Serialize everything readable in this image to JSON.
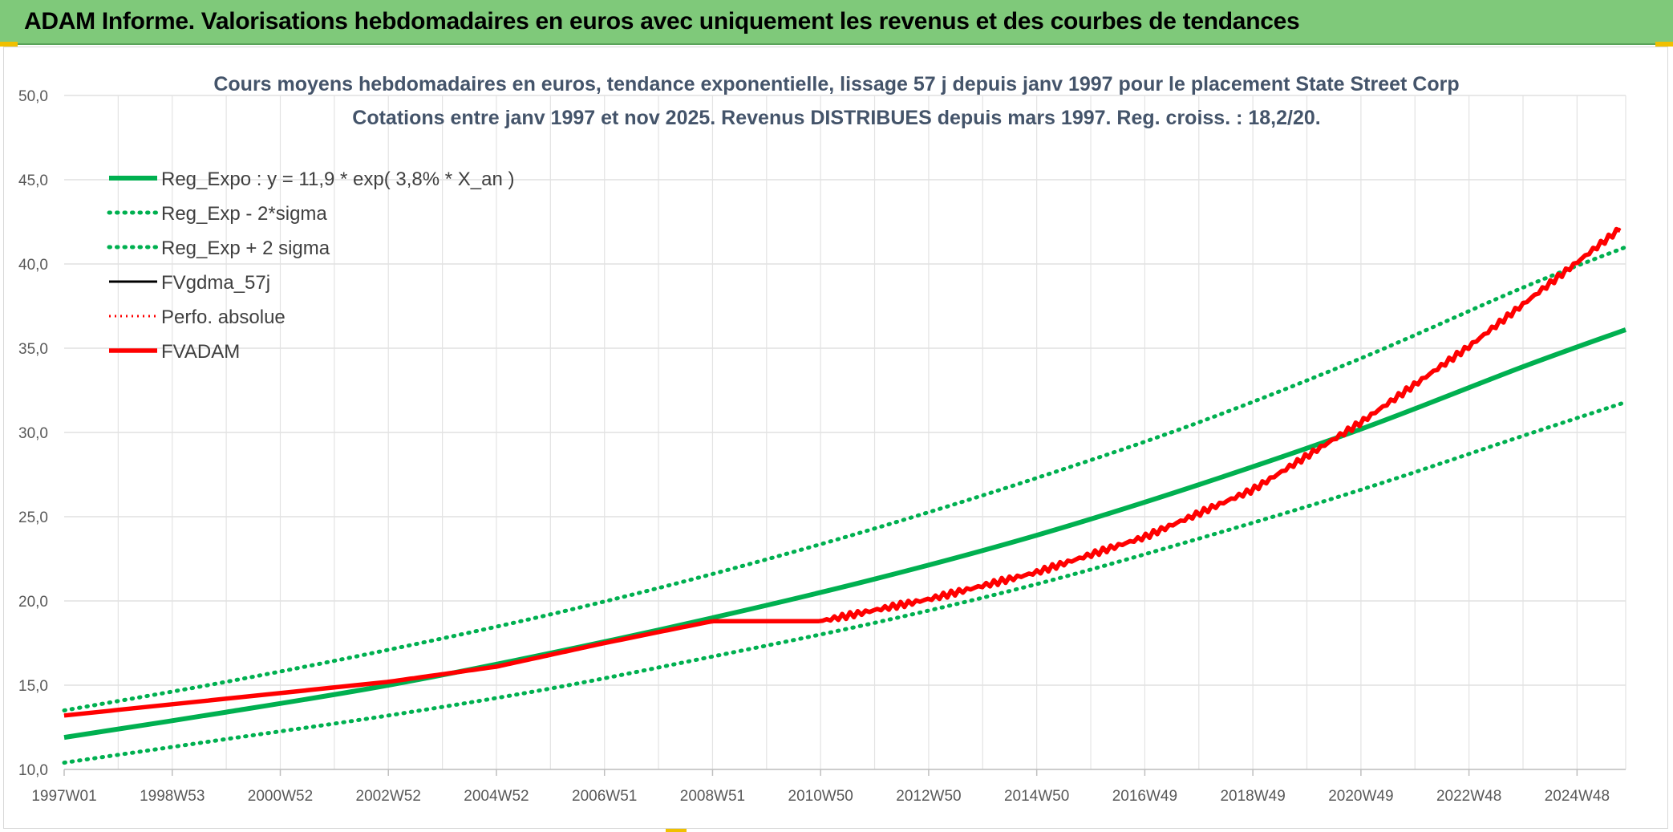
{
  "header": {
    "title": "ADAM Informe. Valorisations hebdomadaires en euros avec uniquement les revenus et des courbes de tendances"
  },
  "chart_data": {
    "type": "line",
    "title": "Cours moyens hebdomadaires en euros, tendance exponentielle, lissage 57 j depuis janv 1997 pour le placement State Street Corp",
    "subtitle": "Cotations entre janv 1997 et nov 2025. Revenus DISTRIBUES depuis mars 1997. Reg. croiss. : 18,2/20.",
    "xlabel": "",
    "ylabel": "",
    "x_range": [
      1997.0,
      2025.9
    ],
    "ylim": [
      10.0,
      50.0
    ],
    "y_ticks": [
      "10,0",
      "15,0",
      "20,0",
      "25,0",
      "30,0",
      "35,0",
      "40,0",
      "45,0",
      "50,0"
    ],
    "x_ticks": [
      {
        "label": "1997W01",
        "x": 1997.0
      },
      {
        "label": "1998W53",
        "x": 1999.0
      },
      {
        "label": "2000W52",
        "x": 2001.0
      },
      {
        "label": "2002W52",
        "x": 2003.0
      },
      {
        "label": "2004W52",
        "x": 2005.0
      },
      {
        "label": "2006W51",
        "x": 2007.0
      },
      {
        "label": "2008W51",
        "x": 2009.0
      },
      {
        "label": "2010W50",
        "x": 2011.0
      },
      {
        "label": "2012W50",
        "x": 2013.0
      },
      {
        "label": "2014W50",
        "x": 2015.0
      },
      {
        "label": "2016W49",
        "x": 2017.0
      },
      {
        "label": "2018W49",
        "x": 2019.0
      },
      {
        "label": "2020W49",
        "x": 2021.0
      },
      {
        "label": "2022W48",
        "x": 2023.0
      },
      {
        "label": "2024W48",
        "x": 2025.0
      }
    ],
    "grid": true,
    "legend_position": "top-left",
    "series": [
      {
        "name": "Reg_Expo : y = 11,9 * exp( 3,8% *  X_an )",
        "color": "#00b050",
        "style": "solid",
        "x": [
          1997.0,
          2000.0,
          2003.0,
          2006.0,
          2009.0,
          2012.0,
          2015.0,
          2018.0,
          2021.0,
          2024.0,
          2025.9
        ],
        "values": [
          11.9,
          13.4,
          15.0,
          16.9,
          19.0,
          21.3,
          23.9,
          26.9,
          30.2,
          33.9,
          36.1
        ]
      },
      {
        "name": "Reg_Exp - 2*sigma",
        "color": "#00b050",
        "style": "dotted",
        "x": [
          1997.0,
          2000.0,
          2003.0,
          2006.0,
          2009.0,
          2012.0,
          2015.0,
          2018.0,
          2021.0,
          2024.0,
          2025.9
        ],
        "values": [
          10.4,
          11.8,
          13.2,
          14.8,
          16.7,
          18.7,
          21.0,
          23.7,
          26.6,
          29.8,
          31.8
        ]
      },
      {
        "name": "Reg_Exp + 2 sigma",
        "color": "#00b050",
        "style": "dotted",
        "x": [
          1997.0,
          2000.0,
          2003.0,
          2006.0,
          2009.0,
          2012.0,
          2015.0,
          2018.0,
          2021.0,
          2024.0,
          2025.9
        ],
        "values": [
          13.5,
          15.2,
          17.1,
          19.2,
          21.6,
          24.3,
          27.3,
          30.6,
          34.4,
          38.6,
          41.0
        ]
      },
      {
        "name": "FVgdma_57j",
        "color": "#000000",
        "style": "solid",
        "x": [
          1997.0,
          2000.0,
          2003.0,
          2005.0,
          2007.0,
          2009.0,
          2010.0,
          2011.0,
          2013.0,
          2015.0,
          2017.0,
          2019.0,
          2021.0,
          2023.0,
          2024.0,
          2025.0,
          2025.8
        ],
        "values": [
          13.2,
          14.2,
          15.2,
          16.1,
          17.5,
          18.8,
          18.8,
          18.8,
          20.1,
          21.7,
          23.8,
          26.6,
          30.6,
          35.1,
          37.6,
          40.1,
          42.1
        ]
      },
      {
        "name": "Perfo. absolue",
        "color": "#ff0000",
        "style": "dotted",
        "x": [
          1997.0,
          2000.0,
          2003.0,
          2005.0,
          2007.0,
          2009.0,
          2010.0,
          2011.0,
          2013.0,
          2015.0,
          2017.0,
          2019.0,
          2021.0,
          2023.0,
          2024.0,
          2025.0,
          2025.8
        ],
        "values": [
          13.2,
          14.2,
          15.2,
          16.1,
          17.5,
          18.8,
          18.8,
          18.8,
          20.1,
          21.7,
          23.8,
          26.6,
          30.6,
          35.1,
          37.6,
          40.1,
          42.1
        ]
      },
      {
        "name": "FVADAM",
        "color": "#ff0000",
        "style": "solid",
        "x": [
          1997.0,
          2000.0,
          2003.0,
          2005.0,
          2007.0,
          2009.0,
          2010.0,
          2011.0,
          2013.0,
          2015.0,
          2017.0,
          2019.0,
          2021.0,
          2023.0,
          2024.0,
          2025.0,
          2025.8
        ],
        "values": [
          13.2,
          14.2,
          15.2,
          16.1,
          17.5,
          18.8,
          18.8,
          18.8,
          20.1,
          21.7,
          23.8,
          26.6,
          30.6,
          35.1,
          37.6,
          40.1,
          42.1
        ]
      }
    ]
  }
}
